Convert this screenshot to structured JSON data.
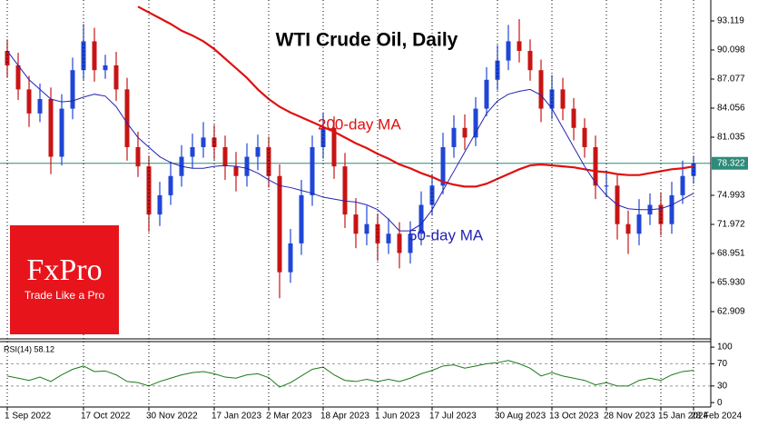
{
  "chart_data": {
    "type": "candlestick",
    "title": "WTI Crude Oil, Daily",
    "logo_text": "FxPro",
    "logo_tagline": "Trade Like a Pro",
    "up_color": "#1f46d6",
    "down_color": "#c81414",
    "open": [
      90,
      88.5,
      86,
      83.5,
      85,
      79,
      84,
      88,
      91,
      88,
      88.5,
      86,
      80,
      78,
      73,
      75,
      77,
      79,
      80,
      81,
      80,
      78,
      77,
      79,
      80,
      77,
      67,
      70,
      75,
      80,
      82,
      78,
      73,
      71,
      72,
      70,
      71,
      69,
      71,
      74,
      76,
      80,
      82,
      81,
      84,
      87,
      89,
      91,
      90,
      88,
      84,
      86,
      84,
      82,
      80,
      76,
      76,
      72,
      71,
      73,
      74,
      72,
      75,
      77
    ],
    "high": [
      91.2,
      89.8,
      87.4,
      86.6,
      86.2,
      85.5,
      89.3,
      92.8,
      92.4,
      89.6,
      89.9,
      87.2,
      81.6,
      79.1,
      76.4,
      78.5,
      80.2,
      81.4,
      82.6,
      82.3,
      81.2,
      79.5,
      80.4,
      81.3,
      81.1,
      78.2,
      71.5,
      76.6,
      81.2,
      83.6,
      83.2,
      79.4,
      74.7,
      73.9,
      73.1,
      72.6,
      72.2,
      72.3,
      75.4,
      77.2,
      81.5,
      83.3,
      83.4,
      85.2,
      88.3,
      90.6,
      92.7,
      93.3,
      91.2,
      89.1,
      87.5,
      87.2,
      85.1,
      83.0,
      81.2,
      77.6,
      77.1,
      73.4,
      74.6,
      75.2,
      75.3,
      76.4,
      78.6,
      79.1
    ],
    "low": [
      87.2,
      84.9,
      82.1,
      82.6,
      77.2,
      78.1,
      82.9,
      87.0,
      86.8,
      87.1,
      84.8,
      78.6,
      76.9,
      71.2,
      71.8,
      74.0,
      75.9,
      77.8,
      78.9,
      78.7,
      76.6,
      75.4,
      75.9,
      77.6,
      75.8,
      64.3,
      65.9,
      68.8,
      73.9,
      78.8,
      76.7,
      71.6,
      69.5,
      69.8,
      68.2,
      68.9,
      67.4,
      67.9,
      69.8,
      72.9,
      75.1,
      78.9,
      79.7,
      80.1,
      83.2,
      85.9,
      88.0,
      88.8,
      86.9,
      82.6,
      82.9,
      82.8,
      80.7,
      78.9,
      74.6,
      74.8,
      70.4,
      68.9,
      69.8,
      71.9,
      70.8,
      71.0,
      74.1,
      76.2
    ],
    "close": [
      88.5,
      86,
      83.5,
      85,
      79,
      84,
      88,
      91,
      88,
      88.5,
      86,
      80,
      78,
      73,
      75,
      77,
      79,
      80,
      81,
      80,
      78,
      77,
      79,
      80,
      77,
      67,
      70,
      75,
      80,
      82,
      78,
      73,
      71,
      72,
      70,
      71,
      69,
      71,
      74,
      76,
      80,
      82,
      81,
      84,
      87,
      89,
      91,
      90,
      88,
      84,
      86,
      84,
      82,
      80,
      76,
      76,
      72,
      71,
      73,
      74,
      72,
      75,
      77,
      78.32
    ],
    "series": [
      {
        "name": "200-day MA",
        "color": "#e01010",
        "values": [
          null,
          null,
          null,
          null,
          null,
          null,
          null,
          null,
          null,
          null,
          null,
          null,
          94.6,
          94.0,
          93.4,
          92.8,
          92.1,
          91.6,
          91.0,
          90.2,
          89.2,
          88.2,
          87.2,
          86.0,
          85.0,
          84.2,
          83.6,
          83.1,
          82.6,
          82.1,
          81.6,
          81.0,
          80.4,
          79.9,
          79.3,
          78.8,
          78.2,
          77.8,
          77.3,
          76.9,
          76.4,
          76.1,
          75.9,
          75.9,
          76.2,
          76.7,
          77.2,
          77.7,
          78.1,
          78.2,
          78.1,
          78.0,
          77.9,
          77.7,
          77.5,
          77.4,
          77.2,
          77.1,
          77.1,
          77.3,
          77.5,
          77.7,
          77.8,
          78.0
        ]
      },
      {
        "name": "50-day MA",
        "color": "#2323b4",
        "values": [
          90.0,
          88.5,
          87.0,
          86.0,
          85.0,
          84.7,
          84.8,
          85.2,
          85.5,
          85.3,
          84.2,
          82.5,
          81.0,
          80.0,
          79.0,
          78.4,
          78.0,
          77.8,
          77.8,
          78.0,
          78.1,
          78.0,
          77.8,
          77.3,
          76.6,
          76.0,
          75.8,
          75.5,
          75.2,
          74.8,
          74.6,
          74.4,
          74.3,
          74.0,
          73.5,
          72.5,
          71.3,
          71.3,
          72.0,
          73.5,
          75.5,
          77.5,
          79.5,
          81.5,
          83.5,
          84.8,
          85.5,
          85.8,
          86.0,
          85.4,
          84.0,
          82.0,
          80.0,
          78.0,
          76.3,
          75.0,
          74.0,
          73.6,
          73.5,
          73.5,
          73.6,
          74.0,
          74.6,
          75.2
        ]
      }
    ],
    "last_price": 78.322,
    "last_price_color": "#2e8b7a",
    "ylim": [
      60.17,
      95.29
    ],
    "yticks": [
      93.119,
      {
        "value": 90.098,
        "label": "90.098"
      },
      87.077,
      84.056,
      81.035,
      74.993,
      71.972,
      68.951,
      {
        "value": 65.93,
        "label": "65.930"
      },
      62.909
    ],
    "xticks": [
      {
        "value": 0,
        "label": "1 Sep 2022"
      },
      {
        "value": 7,
        "label": "17 Oct 2022"
      },
      {
        "value": 13,
        "label": "30 Nov 2022"
      },
      {
        "value": 19,
        "label": "17 Jan 2023"
      },
      {
        "value": 24,
        "label": "2 Mar 2023"
      },
      {
        "value": 29,
        "label": "18 Apr 2023"
      },
      {
        "value": 34,
        "label": "1 Jun 2023"
      },
      {
        "value": 39,
        "label": "17 Jul 2023"
      },
      {
        "value": 45,
        "label": "30 Aug 2023"
      },
      {
        "value": 50,
        "label": "13 Oct 2023"
      },
      {
        "value": 55,
        "label": "28 Nov 2023"
      },
      {
        "value": 60,
        "label": "15 Jan 2024"
      },
      {
        "value": 63,
        "label": "28 Feb 2024"
      }
    ],
    "rsi": {
      "label": "RSI(14) 58.12",
      "color": "#1a7a1a",
      "values": [
        48,
        44,
        40,
        46,
        38,
        50,
        60,
        66,
        56,
        57,
        50,
        38,
        36,
        30,
        38,
        44,
        50,
        54,
        56,
        52,
        46,
        44,
        50,
        52,
        45,
        28,
        36,
        48,
        60,
        64,
        50,
        40,
        38,
        42,
        38,
        42,
        38,
        44,
        52,
        58,
        66,
        68,
        62,
        66,
        70,
        72,
        76,
        70,
        62,
        48,
        54,
        48,
        44,
        40,
        32,
        36,
        30,
        30,
        40,
        44,
        40,
        50,
        56,
        58.12
      ],
      "ylim": [
        -8,
        110
      ],
      "yticks": [
        100,
        70,
        30,
        0
      ],
      "levels": [
        70,
        30
      ]
    }
  }
}
